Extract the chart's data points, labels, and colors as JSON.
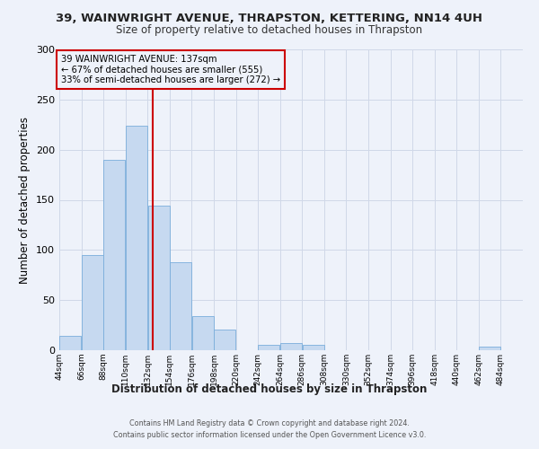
{
  "title1": "39, WAINWRIGHT AVENUE, THRAPSTON, KETTERING, NN14 4UH",
  "title2": "Size of property relative to detached houses in Thrapston",
  "xlabel": "Distribution of detached houses by size in Thrapston",
  "ylabel": "Number of detached properties",
  "footer1": "Contains HM Land Registry data © Crown copyright and database right 2024.",
  "footer2": "Contains public sector information licensed under the Open Government Licence v3.0.",
  "annotation_line1": "39 WAINWRIGHT AVENUE: 137sqm",
  "annotation_line2": "← 67% of detached houses are smaller (555)",
  "annotation_line3": "33% of semi-detached houses are larger (272) →",
  "property_size": 137,
  "bin_edges": [
    44,
    66,
    88,
    110,
    132,
    154,
    176,
    198,
    220,
    242,
    264,
    286,
    308,
    330,
    352,
    374,
    396,
    418,
    440,
    462,
    484
  ],
  "bar_heights": [
    14,
    95,
    190,
    224,
    144,
    88,
    34,
    21,
    0,
    5,
    7,
    5,
    0,
    0,
    0,
    0,
    0,
    0,
    0,
    4,
    0
  ],
  "bar_color": "#c6d9f0",
  "bar_edge_color": "#7aaedb",
  "vline_color": "#cc0000",
  "vline_x": 137,
  "annotation_box_edge": "#cc0000",
  "bg_color": "#eef2fa",
  "grid_color": "#d0d8e8",
  "ylim": [
    0,
    300
  ],
  "xlim": [
    44,
    506
  ]
}
